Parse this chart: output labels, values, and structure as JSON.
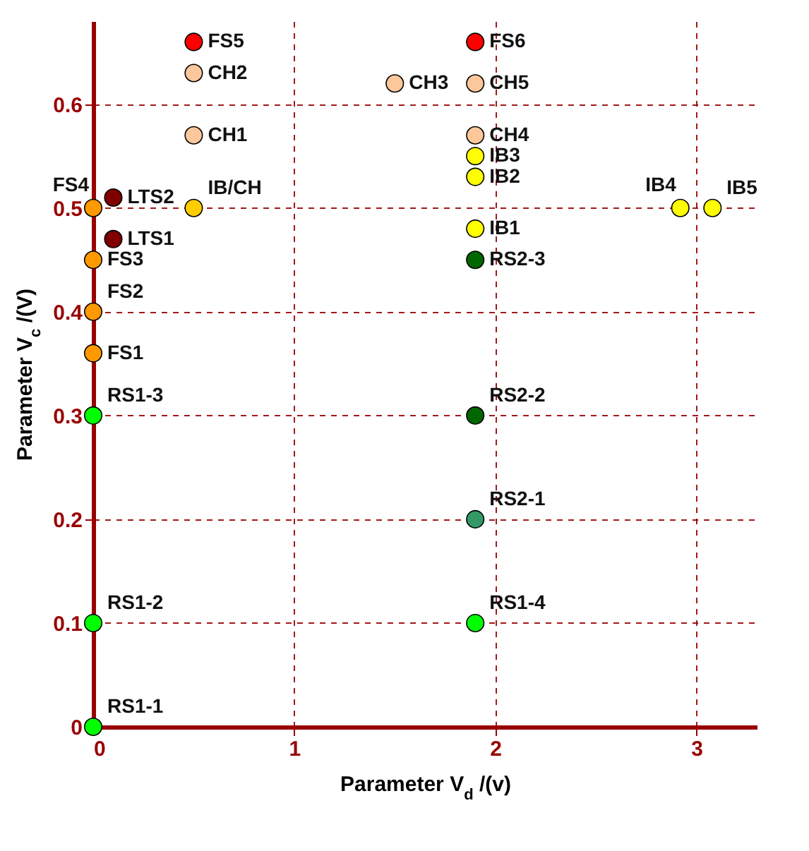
{
  "chart_data": {
    "type": "scatter",
    "xlabel": "Parameter V$_{d}$ /(v)",
    "ylabel": "Parameter V$_{c}$ /(V)",
    "x": [
      0,
      0,
      0,
      0,
      0.5,
      1.9,
      0.1,
      0.1,
      0.5,
      0.5,
      1.5,
      1.9,
      1.9,
      0.5,
      1.9,
      1.9,
      1.9,
      2.92,
      3.08,
      0,
      0,
      0,
      1.9,
      1.9,
      1.9,
      1.9
    ],
    "values": [
      0.36,
      0.4,
      0.45,
      0.5,
      0.66,
      0.66,
      0.47,
      0.51,
      0.57,
      0.63,
      0.62,
      0.57,
      0.62,
      0.5,
      0.48,
      0.53,
      0.55,
      0.5,
      0.5,
      0,
      0.1,
      0.3,
      0.1,
      0.2,
      0.3,
      0.45
    ],
    "colors": [
      "#ff9900",
      "#ff9900",
      "#ff9900",
      "#ff9900",
      "#ff0000",
      "#ff0000",
      "#800000",
      "#800000",
      "#fcc89b",
      "#fcc89b",
      "#fcc89b",
      "#fcc89b",
      "#fcc89b",
      "#ffcc00",
      "#ffff00",
      "#ffff00",
      "#ffff00",
      "#ffff00",
      "#ffff00",
      "#00ff00",
      "#00ff00",
      "#00ff00",
      "#00ff00",
      "#339966",
      "#006600",
      "#006600"
    ],
    "marker": "circle",
    "xlim": [
      0,
      3.3
    ],
    "ylim": [
      0,
      0.68
    ],
    "xticks": [
      0,
      1,
      2,
      3
    ],
    "yticks": [
      0,
      0.1,
      0.2,
      0.3,
      0.4,
      0.5,
      0.6
    ],
    "grid": true,
    "annotations": [
      {
        "text": "FS1",
        "x": 0,
        "y": 0.36
      },
      {
        "text": "FS2",
        "x": 0,
        "y": 0.4
      },
      {
        "text": "FS3",
        "x": 0,
        "y": 0.45
      },
      {
        "text": "FS4",
        "x": 0,
        "y": 0.5
      },
      {
        "text": "FS5",
        "x": 0.5,
        "y": 0.66
      },
      {
        "text": "FS6",
        "x": 1.9,
        "y": 0.66
      },
      {
        "text": "LTS1",
        "x": 0.1,
        "y": 0.47
      },
      {
        "text": "LTS2",
        "x": 0.1,
        "y": 0.51
      },
      {
        "text": "CH1",
        "x": 0.5,
        "y": 0.57
      },
      {
        "text": "CH2",
        "x": 0.5,
        "y": 0.63
      },
      {
        "text": "CH3",
        "x": 1.5,
        "y": 0.62
      },
      {
        "text": "CH4",
        "x": 1.9,
        "y": 0.57
      },
      {
        "text": "CH5",
        "x": 1.9,
        "y": 0.62
      },
      {
        "text": "IB/CH",
        "x": 0.5,
        "y": 0.5
      },
      {
        "text": "IB1",
        "x": 1.9,
        "y": 0.48
      },
      {
        "text": "IB2",
        "x": 1.9,
        "y": 0.53
      },
      {
        "text": "IB3",
        "x": 1.9,
        "y": 0.55
      },
      {
        "text": "IB4",
        "x": 2.92,
        "y": 0.5
      },
      {
        "text": "IB5",
        "x": 3.08,
        "y": 0.5
      },
      {
        "text": "RS1-1",
        "x": 0,
        "y": 0
      },
      {
        "text": "RS1-2",
        "x": 0,
        "y": 0.1
      },
      {
        "text": "RS1-3",
        "x": 0,
        "y": 0.3
      },
      {
        "text": "RS1-4",
        "x": 1.9,
        "y": 0.1
      },
      {
        "text": "RS2-1",
        "x": 1.9,
        "y": 0.2
      },
      {
        "text": "RS2-2",
        "x": 1.9,
        "y": 0.3
      },
      {
        "text": "RS2-3",
        "x": 1.9,
        "y": 0.45
      }
    ]
  }
}
